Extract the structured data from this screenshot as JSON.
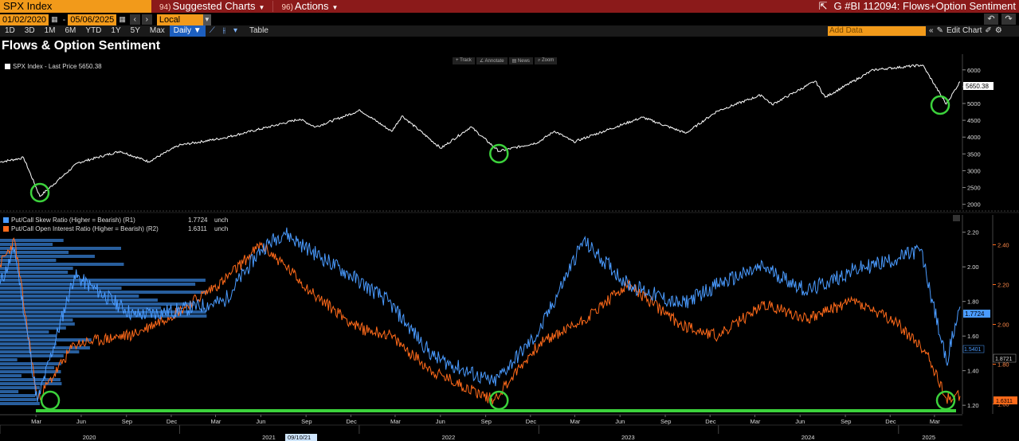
{
  "colors": {
    "topbar": "#8b1a1a",
    "amber": "#f29a1a",
    "price_line": "#ffffff",
    "skew_series": "#4a9bff",
    "oi_series": "#ff6a1a",
    "highlight_circle": "#3cd23c"
  },
  "topbar": {
    "ticker": "SPX Index",
    "menus": [
      {
        "num": "94)",
        "label": "Suggested Charts"
      },
      {
        "num": "96)",
        "label": "Actions"
      }
    ],
    "window_title": "G #BI 112094: Flows+Option Sentiment",
    "export_icon": "external-link-icon"
  },
  "daterow": {
    "start_date": "01/02/2020",
    "end_date": "05/06/2025",
    "currency": "Local CCY"
  },
  "toolbar": {
    "periods": [
      "1D",
      "3D",
      "1M",
      "6M",
      "YTD",
      "1Y",
      "5Y",
      "Max"
    ],
    "frequency": "Daily ▼",
    "table_label": "Table",
    "add_data_placeholder": "Add Data",
    "edit_chart_label": "Edit Chart"
  },
  "chart_title": "Flows & Option Sentiment",
  "chart_tools": [
    "+ Track",
    "∠ Annotate",
    "▤ News",
    "⌕ Zoom"
  ],
  "upper_panel": {
    "legend": "SPX Index - Last Price 5650.38",
    "last_value_label": "5650.38"
  },
  "lower_panel": {
    "legend": [
      {
        "label": "Put/Call Skew Ratio (Higher = Bearish) (R1)",
        "value": "1.7724",
        "change": "unch"
      },
      {
        "label": "Put/Call Open Interest Ratio (Higher = Bearish) (R2)",
        "value": "1.6311",
        "change": "unch"
      }
    ],
    "r1_last_label": "1.7724",
    "r1_marker_label": "1.5401",
    "r2_marker_label": "1.8721",
    "r2_last_label": "1.6311"
  },
  "x_axis": {
    "month_labels": [
      "Mar",
      "Jun",
      "Sep",
      "Dec",
      "Mar",
      "Jun",
      "Sep",
      "Dec",
      "Mar",
      "Jun",
      "Sep",
      "Dec",
      "Mar",
      "Jun",
      "Sep",
      "Dec",
      "Mar",
      "Jun",
      "Sep",
      "Dec",
      "Mar"
    ],
    "year_labels": [
      "2020",
      "2021",
      "2022",
      "2023",
      "2024",
      "2025"
    ],
    "crosshair_date": "09/10/21"
  },
  "chart_data": [
    {
      "type": "line",
      "title": "SPX Index - Last Price",
      "y_ticks": [
        2000,
        2500,
        3000,
        3500,
        4000,
        4500,
        5000,
        5500,
        6000
      ],
      "ylim": [
        1850,
        6350
      ],
      "series": [
        {
          "name": "SPX Index - Last Price",
          "x": [
            "2020-01-02",
            "2020-02-19",
            "2020-03-23",
            "2020-06-08",
            "2020-09-02",
            "2020-10-30",
            "2020-12-31",
            "2021-03-31",
            "2021-06-30",
            "2021-09-02",
            "2021-10-04",
            "2022-01-03",
            "2022-03-08",
            "2022-03-29",
            "2022-06-16",
            "2022-08-16",
            "2022-10-12",
            "2022-12-30",
            "2023-02-02",
            "2023-03-13",
            "2023-07-31",
            "2023-10-27",
            "2023-12-29",
            "2024-03-28",
            "2024-04-19",
            "2024-07-16",
            "2024-08-05",
            "2024-11-11",
            "2025-02-19",
            "2025-04-08",
            "2025-05-06"
          ],
          "values": [
            3258,
            3386,
            2237,
            3232,
            3580,
            3270,
            3756,
            3973,
            4297,
            4537,
            4300,
            4797,
            4170,
            4632,
            3667,
            4305,
            3577,
            3840,
            4179,
            3856,
            4589,
            4117,
            4770,
            5254,
            4967,
            5667,
            5186,
            6001,
            6144,
            4982,
            5650
          ]
        }
      ]
    },
    {
      "type": "line",
      "series": [
        {
          "name": "Put/Call Skew Ratio (Higher = Bearish)",
          "axis": "R1",
          "ylim": [
            1.15,
            2.3
          ],
          "y_ticks": [
            1.2,
            1.4,
            1.6,
            1.8,
            2.0,
            2.2
          ],
          "x": [
            "2020-01-02",
            "2020-02-01",
            "2020-03-18",
            "2020-06-01",
            "2020-10-01",
            "2021-01-01",
            "2021-04-01",
            "2021-06-15",
            "2021-08-01",
            "2021-09-10",
            "2021-12-15",
            "2022-03-01",
            "2022-06-01",
            "2022-10-01",
            "2023-01-01",
            "2023-04-01",
            "2023-07-01",
            "2023-10-15",
            "2024-01-01",
            "2024-04-01",
            "2024-07-01",
            "2024-10-01",
            "2025-01-01",
            "2025-02-15",
            "2025-04-08",
            "2025-05-06"
          ],
          "values": [
            1.9,
            2.1,
            1.22,
            1.95,
            1.72,
            1.75,
            1.8,
            2.1,
            2.2,
            2.12,
            1.95,
            1.8,
            1.48,
            1.33,
            1.62,
            2.15,
            1.9,
            1.78,
            1.9,
            2.0,
            1.86,
            1.98,
            2.05,
            2.1,
            1.45,
            1.77
          ]
        },
        {
          "name": "Put/Call Open Interest Ratio (Higher = Bearish)",
          "axis": "R2",
          "ylim": [
            1.55,
            2.55
          ],
          "y_ticks": [
            1.6,
            1.8,
            2.0,
            2.2,
            2.4
          ],
          "x": [
            "2020-01-02",
            "2020-02-01",
            "2020-03-18",
            "2020-06-01",
            "2020-10-01",
            "2021-01-01",
            "2021-04-01",
            "2021-06-15",
            "2021-08-01",
            "2021-10-01",
            "2022-01-01",
            "2022-03-01",
            "2022-06-01",
            "2022-10-01",
            "2023-01-01",
            "2023-04-01",
            "2023-07-01",
            "2023-10-15",
            "2024-01-01",
            "2024-04-01",
            "2024-07-01",
            "2024-10-01",
            "2025-01-01",
            "2025-03-01",
            "2025-04-08",
            "2025-05-06"
          ],
          "values": [
            2.3,
            2.42,
            1.62,
            1.9,
            1.95,
            2.07,
            2.22,
            2.4,
            2.3,
            2.15,
            1.98,
            1.95,
            1.76,
            1.62,
            1.9,
            2.02,
            2.2,
            2.0,
            1.94,
            2.1,
            2.03,
            2.12,
            2.0,
            1.85,
            1.63,
            1.64
          ]
        }
      ]
    }
  ]
}
